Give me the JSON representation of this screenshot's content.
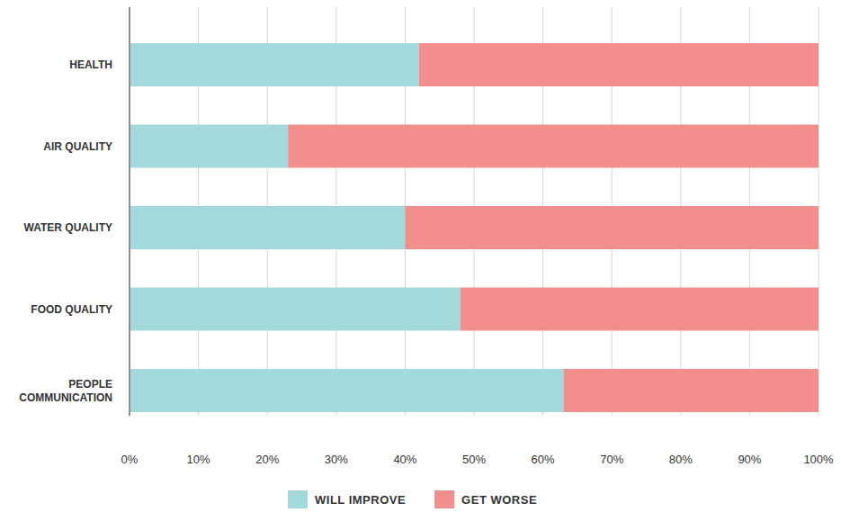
{
  "chart_data": {
    "type": "bar",
    "orientation": "horizontal",
    "stacked": true,
    "grid": true,
    "legend": "bottom",
    "categories": [
      "HEALTH",
      "AIR QUALITY",
      "WATER QUALITY",
      "FOOD QUALITY",
      "PEOPLE COMMUNICATION"
    ],
    "series": [
      {
        "name": "WILL IMPROVE",
        "color": "#a4d9db",
        "values": [
          42,
          23,
          40,
          48,
          63
        ]
      },
      {
        "name": "GET WORSE",
        "color": "#f28f8c",
        "values": [
          58,
          77,
          60,
          52,
          37
        ]
      }
    ],
    "xlim": [
      0,
      100
    ],
    "xticks": [
      {
        "value": 0,
        "label": "0%"
      },
      {
        "value": 10,
        "label": "10%"
      },
      {
        "value": 20,
        "label": "20%"
      },
      {
        "value": 30,
        "label": "30%"
      },
      {
        "value": 40,
        "label": "40%"
      },
      {
        "value": 50,
        "label": "50%"
      },
      {
        "value": 60,
        "label": "60%"
      },
      {
        "value": 70,
        "label": "70%"
      },
      {
        "value": 80,
        "label": "80%"
      },
      {
        "value": 90,
        "label": "90%"
      },
      {
        "value": 100,
        "label": "100%"
      }
    ]
  }
}
